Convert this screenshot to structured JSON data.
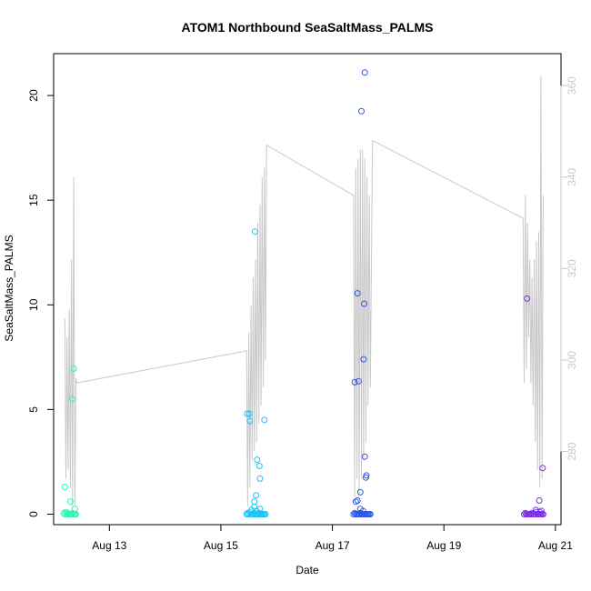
{
  "chart_data": {
    "type": "scatter",
    "title": "ATOM1 Northbound SeaSaltMass_PALMS",
    "xlabel": "Date",
    "ylabel": "SeaSaltMass_PALMS",
    "x_axis": {
      "unit": "day of August 2016",
      "range": [
        12.0,
        21.1
      ],
      "ticks": [
        13,
        15,
        17,
        19,
        21
      ],
      "tick_labels": [
        "Aug 13",
        "Aug 15",
        "Aug 17",
        "Aug 19",
        "Aug 21"
      ]
    },
    "y_axis": {
      "range": [
        -0.5,
        22.0
      ],
      "ticks": [
        0,
        5,
        10,
        15,
        20
      ],
      "tick_labels": [
        "0",
        "5",
        "10",
        "15",
        "20"
      ]
    },
    "y2_axis": {
      "range": [
        264,
        367
      ],
      "ticks": [
        280,
        300,
        320,
        340,
        360
      ],
      "tick_labels": [
        "280",
        "300",
        "320",
        "340",
        "360"
      ],
      "color": "#c8c8c8"
    },
    "grid": false,
    "legend": "none",
    "point_series": [
      {
        "color": "#2ef2b6",
        "points": [
          [
            12.18,
            0.05
          ],
          [
            12.2,
            0.0
          ],
          [
            12.22,
            0.1
          ],
          [
            12.24,
            0.0
          ],
          [
            12.26,
            0.05
          ],
          [
            12.28,
            0.0
          ],
          [
            12.3,
            0.0
          ],
          [
            12.32,
            0.0
          ],
          [
            12.34,
            0.05
          ],
          [
            12.36,
            0.0
          ],
          [
            12.38,
            0.0
          ],
          [
            12.4,
            0.0
          ],
          [
            12.2,
            1.3
          ],
          [
            12.3,
            0.6
          ],
          [
            12.38,
            0.25
          ],
          [
            12.33,
            5.5
          ],
          [
            12.36,
            6.95
          ]
        ]
      },
      {
        "color": "#1ec3f2",
        "points": [
          [
            15.46,
            0.0
          ],
          [
            15.48,
            0.05
          ],
          [
            15.5,
            0.0
          ],
          [
            15.52,
            0.1
          ],
          [
            15.54,
            0.0
          ],
          [
            15.56,
            0.0
          ],
          [
            15.58,
            0.0
          ],
          [
            15.6,
            0.05
          ],
          [
            15.62,
            0.0
          ],
          [
            15.64,
            0.0
          ],
          [
            15.66,
            0.0
          ],
          [
            15.68,
            0.0
          ],
          [
            15.7,
            0.05
          ],
          [
            15.72,
            0.0
          ],
          [
            15.74,
            0.0
          ],
          [
            15.76,
            0.0
          ],
          [
            15.78,
            0.0
          ],
          [
            15.8,
            0.0
          ],
          [
            15.55,
            0.2
          ],
          [
            15.6,
            0.35
          ],
          [
            15.64,
            0.15
          ],
          [
            15.7,
            0.25
          ],
          [
            15.6,
            0.6
          ],
          [
            15.63,
            0.9
          ],
          [
            15.47,
            4.8
          ],
          [
            15.51,
            4.8
          ],
          [
            15.52,
            4.45
          ],
          [
            15.65,
            2.6
          ],
          [
            15.69,
            2.3
          ],
          [
            15.7,
            1.7
          ],
          [
            15.78,
            4.5
          ],
          [
            15.61,
            13.5
          ]
        ]
      },
      {
        "color": "#2d56e6",
        "points": [
          [
            17.38,
            0.0
          ],
          [
            17.4,
            0.05
          ],
          [
            17.42,
            0.0
          ],
          [
            17.44,
            0.0
          ],
          [
            17.46,
            0.0
          ],
          [
            17.48,
            0.0
          ],
          [
            17.5,
            0.05
          ],
          [
            17.52,
            0.0
          ],
          [
            17.54,
            0.0
          ],
          [
            17.56,
            0.0
          ],
          [
            17.58,
            0.0
          ],
          [
            17.6,
            0.0
          ],
          [
            17.62,
            0.0
          ],
          [
            17.64,
            0.0
          ],
          [
            17.66,
            0.0
          ],
          [
            17.68,
            0.0
          ],
          [
            17.5,
            0.25
          ],
          [
            17.55,
            0.15
          ],
          [
            17.42,
            0.6
          ],
          [
            17.45,
            0.65
          ],
          [
            17.5,
            1.05
          ],
          [
            17.6,
            1.75
          ],
          [
            17.61,
            1.85
          ],
          [
            17.58,
            2.75
          ],
          [
            17.4,
            6.3
          ],
          [
            17.47,
            6.35
          ],
          [
            17.56,
            7.4
          ],
          [
            17.45,
            10.55
          ],
          [
            17.57,
            10.05
          ],
          [
            17.52,
            19.25
          ],
          [
            17.58,
            21.1
          ]
        ]
      },
      {
        "color": "#7b30e0",
        "points": [
          [
            20.44,
            0.0
          ],
          [
            20.46,
            0.05
          ],
          [
            20.48,
            0.0
          ],
          [
            20.5,
            0.0
          ],
          [
            20.52,
            0.0
          ],
          [
            20.54,
            0.0
          ],
          [
            20.56,
            0.0
          ],
          [
            20.58,
            0.05
          ],
          [
            20.6,
            0.0
          ],
          [
            20.62,
            0.0
          ],
          [
            20.64,
            0.0
          ],
          [
            20.66,
            0.1
          ],
          [
            20.68,
            0.0
          ],
          [
            20.7,
            0.0
          ],
          [
            20.72,
            0.0
          ],
          [
            20.74,
            0.0
          ],
          [
            20.76,
            0.0
          ],
          [
            20.78,
            0.0
          ],
          [
            20.65,
            0.2
          ],
          [
            20.72,
            0.1
          ],
          [
            20.75,
            0.15
          ],
          [
            20.71,
            0.65
          ],
          [
            20.77,
            2.2
          ],
          [
            20.49,
            10.3
          ]
        ]
      }
    ],
    "line_series": [
      {
        "axis": "y2",
        "color": "#c8c8c8",
        "points": [
          [
            12.2,
            309
          ],
          [
            12.22,
            274
          ],
          [
            12.24,
            305
          ],
          [
            12.26,
            276
          ],
          [
            12.28,
            311
          ],
          [
            12.3,
            272
          ],
          [
            12.32,
            322
          ],
          [
            12.34,
            268
          ],
          [
            12.36,
            340
          ],
          [
            12.38,
            268
          ],
          [
            12.4,
            296
          ],
          [
            12.42,
            295
          ],
          [
            15.46,
            302
          ],
          [
            15.48,
            268
          ],
          [
            15.5,
            306
          ],
          [
            15.52,
            272
          ],
          [
            15.54,
            312
          ],
          [
            15.56,
            278
          ],
          [
            15.58,
            318
          ],
          [
            15.6,
            280
          ],
          [
            15.62,
            322
          ],
          [
            15.64,
            282
          ],
          [
            15.66,
            330
          ],
          [
            15.68,
            286
          ],
          [
            15.7,
            334
          ],
          [
            15.72,
            290
          ],
          [
            15.74,
            340
          ],
          [
            15.76,
            294
          ],
          [
            15.78,
            342
          ],
          [
            15.8,
            300
          ],
          [
            15.82,
            347
          ],
          [
            17.38,
            336
          ],
          [
            17.4,
            270
          ],
          [
            17.42,
            342
          ],
          [
            17.44,
            274
          ],
          [
            17.46,
            344
          ],
          [
            17.48,
            270
          ],
          [
            17.5,
            346
          ],
          [
            17.52,
            274
          ],
          [
            17.54,
            346
          ],
          [
            17.56,
            278
          ],
          [
            17.58,
            344
          ],
          [
            17.6,
            282
          ],
          [
            17.62,
            340
          ],
          [
            17.64,
            290
          ],
          [
            17.66,
            336
          ],
          [
            17.68,
            294
          ],
          [
            17.72,
            348
          ],
          [
            20.42,
            331
          ],
          [
            20.44,
            295
          ],
          [
            20.46,
            336
          ],
          [
            20.48,
            298
          ],
          [
            20.5,
            330
          ],
          [
            20.52,
            305
          ],
          [
            20.54,
            322
          ],
          [
            20.56,
            295
          ],
          [
            20.58,
            318
          ],
          [
            20.6,
            290
          ],
          [
            20.62,
            322
          ],
          [
            20.64,
            282
          ],
          [
            20.66,
            326
          ],
          [
            20.68,
            276
          ],
          [
            20.7,
            328
          ],
          [
            20.72,
            272
          ],
          [
            20.74,
            362
          ],
          [
            20.76,
            274
          ],
          [
            20.78,
            336
          ]
        ]
      }
    ]
  }
}
